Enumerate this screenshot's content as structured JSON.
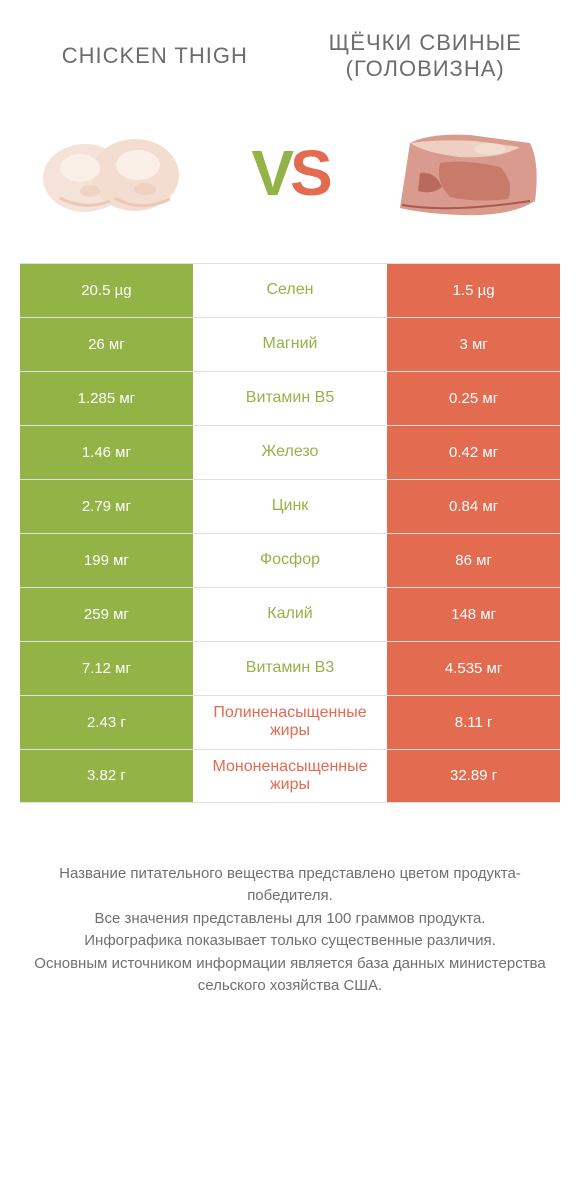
{
  "colors": {
    "left": "#94b347",
    "right": "#e36b4f",
    "text_gray": "#6d6d6d",
    "footer_gray": "#707070",
    "divider": "#e0e0e0",
    "bg": "#ffffff"
  },
  "header": {
    "left_title": "CHICKEN THIGH",
    "right_title_line1": "ЩЁЧКИ СВИНЫЕ",
    "right_title_line2": "(ГОЛОВИЗНА)",
    "vs_v": "V",
    "vs_s": "S"
  },
  "images": {
    "left_name": "chicken-thigh-image",
    "right_name": "pork-cheek-image"
  },
  "table": {
    "rows": [
      {
        "left": "20.5 µg",
        "label": "Селен",
        "right": "1.5 µg",
        "winner": "left"
      },
      {
        "left": "26 мг",
        "label": "Магний",
        "right": "3 мг",
        "winner": "left"
      },
      {
        "left": "1.285 мг",
        "label": "Витамин B5",
        "right": "0.25 мг",
        "winner": "left"
      },
      {
        "left": "1.46 мг",
        "label": "Железо",
        "right": "0.42 мг",
        "winner": "left"
      },
      {
        "left": "2.79 мг",
        "label": "Цинк",
        "right": "0.84 мг",
        "winner": "left"
      },
      {
        "left": "199 мг",
        "label": "Фосфор",
        "right": "86 мг",
        "winner": "left"
      },
      {
        "left": "259 мг",
        "label": "Калий",
        "right": "148 мг",
        "winner": "left"
      },
      {
        "left": "7.12 мг",
        "label": "Витамин B3",
        "right": "4.535 мг",
        "winner": "left"
      },
      {
        "left": "2.43 г",
        "label": "Полиненасыщенные жиры",
        "right": "8.11 г",
        "winner": "right"
      },
      {
        "left": "3.82 г",
        "label": "Мононенасыщенные жиры",
        "right": "32.89 г",
        "winner": "right"
      }
    ]
  },
  "footer": {
    "line1": "Название питательного вещества представлено цветом продукта-победителя.",
    "line2": "Все значения представлены для 100 граммов продукта.",
    "line3": "Инфографика показывает только существенные различия.",
    "line4": "Основным источником информации является база данных министерства сельского хозяйства США."
  }
}
